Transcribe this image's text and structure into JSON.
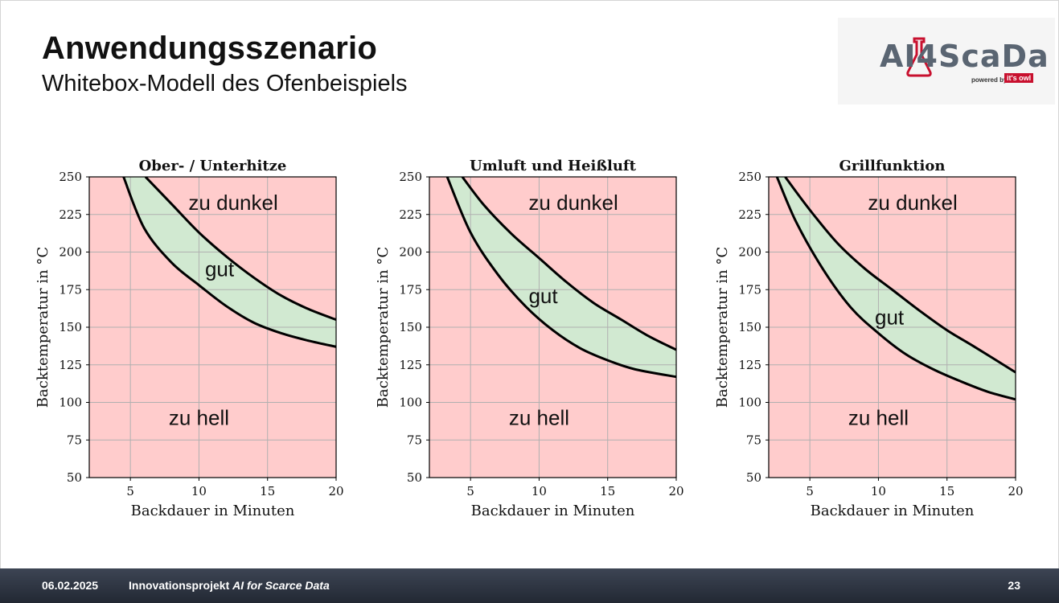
{
  "slide": {
    "title": "Anwendungsszenario",
    "subtitle": "Whitebox-Modell des Ofenbeispiels",
    "logo": {
      "text": "AI4ScaDa",
      "powered": "powered by",
      "brand": "it's owl"
    },
    "footer": {
      "date": "06.02.2025",
      "project_prefix": "Innovationsprojekt ",
      "project_italic": "AI for Scarce Data",
      "page": "23"
    }
  },
  "colors": {
    "red_region": "#ffcccc",
    "green_band": "#d1e9d1",
    "curve": "#000000",
    "grid": "#b0b0b0"
  },
  "chart_data": [
    {
      "type": "area",
      "title": "Ober- / Unterhitze",
      "xlabel": "Backdauer in Minuten",
      "ylabel": "Backtemperatur in °C",
      "xlim": [
        2,
        20
      ],
      "ylim": [
        50,
        250
      ],
      "xticks": [
        5,
        10,
        15,
        20
      ],
      "yticks": [
        50,
        75,
        100,
        125,
        150,
        175,
        200,
        225,
        250
      ],
      "grid": true,
      "regions": {
        "top": "zu dunkel",
        "middle": "gut",
        "bottom": "zu hell"
      },
      "region_positions": {
        "top": [
          12.5,
          228
        ],
        "middle": [
          11.5,
          184
        ],
        "bottom": [
          10,
          85
        ]
      },
      "upper_curve": {
        "x": [
          6.1,
          8,
          10,
          12,
          14,
          16,
          18,
          20
        ],
        "y": [
          250,
          232,
          213,
          197,
          183,
          171,
          162,
          155
        ]
      },
      "lower_curve": {
        "x": [
          4.5,
          6,
          8,
          10,
          12,
          14,
          16,
          18,
          20
        ],
        "y": [
          250,
          216,
          193,
          178,
          164,
          153,
          146,
          141,
          137
        ]
      }
    },
    {
      "type": "area",
      "title": "Umluft und Heißluft",
      "xlabel": "Backdauer in Minuten",
      "ylabel": "Backtemperatur in °C",
      "xlim": [
        2,
        20
      ],
      "ylim": [
        50,
        250
      ],
      "xticks": [
        5,
        10,
        15,
        20
      ],
      "yticks": [
        50,
        75,
        100,
        125,
        150,
        175,
        200,
        225,
        250
      ],
      "grid": true,
      "regions": {
        "top": "zu dunkel",
        "middle": "gut",
        "bottom": "zu hell"
      },
      "region_positions": {
        "top": [
          12.5,
          228
        ],
        "middle": [
          10.3,
          166
        ],
        "bottom": [
          10,
          85
        ]
      },
      "upper_curve": {
        "x": [
          4.4,
          6,
          8,
          10,
          12,
          14,
          16,
          18,
          20
        ],
        "y": [
          250,
          231,
          212,
          196,
          180,
          166,
          155,
          144,
          135
        ]
      },
      "lower_curve": {
        "x": [
          3.3,
          5,
          7,
          9,
          11,
          13,
          15,
          17,
          20
        ],
        "y": [
          250,
          213,
          185,
          164,
          148,
          136,
          128,
          122,
          117
        ]
      }
    },
    {
      "type": "area",
      "title": "Grillfunktion",
      "xlabel": "Backdauer in Minuten",
      "ylabel": "Backtemperatur in °C",
      "xlim": [
        2,
        20
      ],
      "ylim": [
        50,
        250
      ],
      "xticks": [
        5,
        10,
        15,
        20
      ],
      "yticks": [
        50,
        75,
        100,
        125,
        150,
        175,
        200,
        225,
        250
      ],
      "grid": true,
      "regions": {
        "top": "zu dunkel",
        "middle": "gut",
        "bottom": "zu hell"
      },
      "region_positions": {
        "top": [
          12.5,
          228
        ],
        "middle": [
          10.8,
          152
        ],
        "bottom": [
          10,
          85
        ]
      },
      "upper_curve": {
        "x": [
          3.2,
          5,
          7,
          9,
          11,
          13,
          15,
          17,
          20
        ],
        "y": [
          250,
          228,
          206,
          189,
          175,
          161,
          148,
          137,
          120
        ]
      },
      "lower_curve": {
        "x": [
          2.6,
          4,
          6,
          8,
          10,
          12,
          14,
          16,
          18,
          20
        ],
        "y": [
          250,
          220,
          188,
          163,
          146,
          132,
          122,
          114,
          107,
          102
        ]
      }
    }
  ]
}
